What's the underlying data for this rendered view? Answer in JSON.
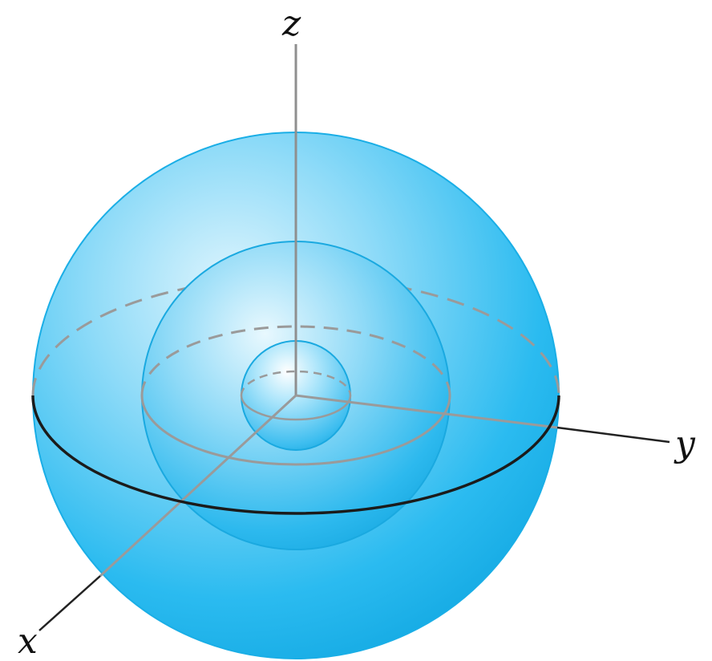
{
  "axes": {
    "z": "z",
    "y": "y",
    "x": "x"
  },
  "colors": {
    "sphere_edge": "#1aaee6",
    "sphere_light": "#cdeffc",
    "sphere_mid": "#3ec2f2",
    "sphere_dark": "#0a9fd8",
    "axis_gray": "#9a9a9a",
    "axis_black": "#222222",
    "equator_black": "#1b1b1b",
    "dashed_gray": "#9a9a9a"
  }
}
